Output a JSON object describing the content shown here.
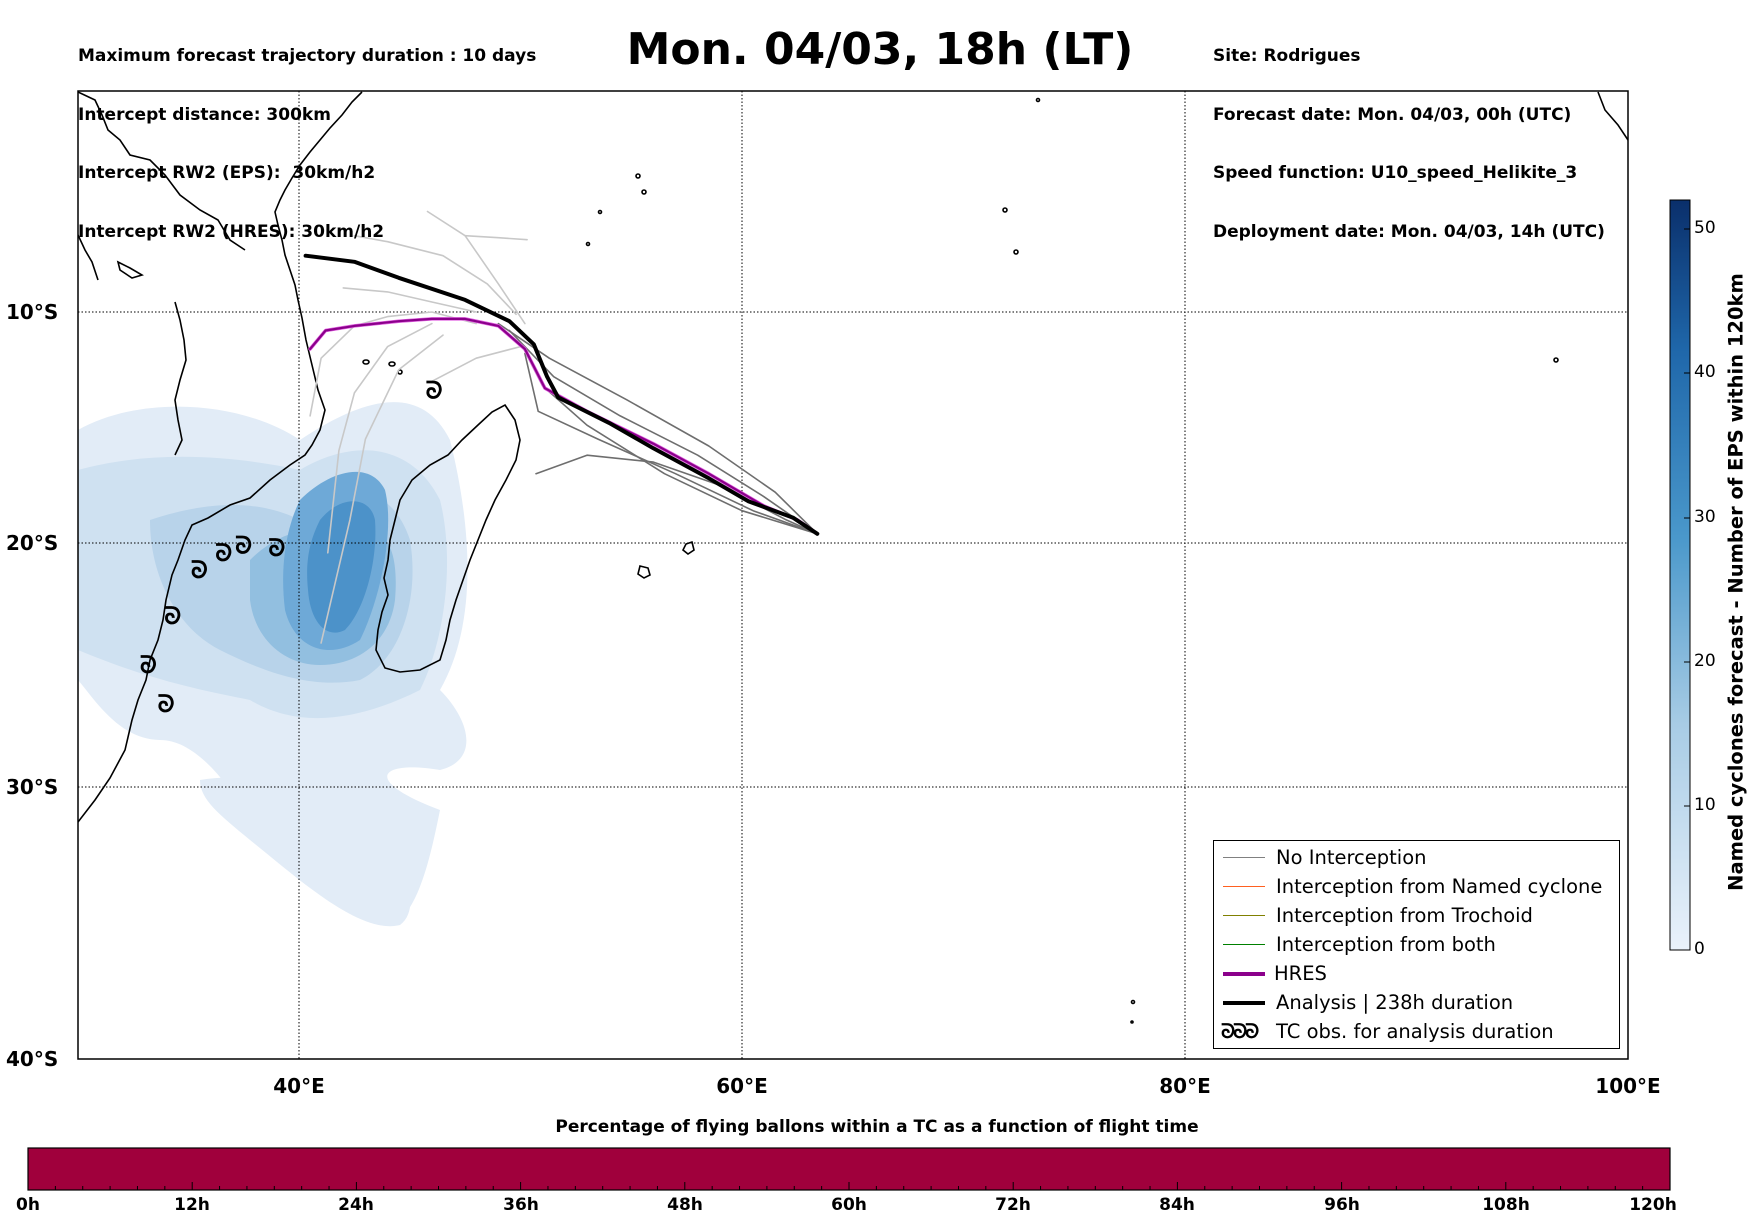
{
  "header": {
    "title": "Mon. 04/03, 18h (LT)",
    "left_info": [
      "Maximum forecast trajectory duration : 10 days",
      "Intercept distance: 300km",
      "Intercept RW2 (EPS):  30km/h2",
      "Intercept RW2 (HRES): 30km/h2"
    ],
    "right_info": [
      "Site: Rodrigues",
      "Forecast date: Mon. 04/03, 00h (UTC)",
      "Speed function: U10_speed_Helikite_3",
      "Deployment date: Mon. 04/03, 14h (UTC)"
    ]
  },
  "map": {
    "lon_range": [
      30,
      100
    ],
    "lat_range": [
      -40,
      1
    ],
    "lon_labels": [
      "40°E",
      "60°E",
      "80°E",
      "100°E"
    ],
    "lat_labels": [
      "10°S",
      "20°S",
      "30°S",
      "40°S"
    ]
  },
  "colorbar": {
    "label": "Named cyclones forecast - Number of EPS within 120km",
    "ticks": [
      "0",
      "10",
      "20",
      "30",
      "40",
      "50"
    ],
    "range": [
      0,
      52
    ]
  },
  "legend": [
    {
      "label": "No Interception",
      "color": "#808080",
      "kind": "line"
    },
    {
      "label": "Interception from Named cyclone",
      "color": "#ff6020",
      "kind": "line"
    },
    {
      "label": "Interception from Trochoid",
      "color": "#808000",
      "kind": "line"
    },
    {
      "label": "Interception from both",
      "color": "#008000",
      "kind": "line"
    },
    {
      "label": "HRES",
      "color": "#8b008b",
      "kind": "thick"
    },
    {
      "label": "Analysis | 238h duration",
      "color": "#000000",
      "kind": "thick"
    },
    {
      "label": "TC obs. for analysis duration",
      "color": "#000000",
      "kind": "symbol",
      "symbol": "ᘐᘐᘐ"
    }
  ],
  "bottom_bar": {
    "title": "Percentage of flying ballons within a TC as a function of flight time",
    "color": "#a0003c",
    "time_labels": [
      "0h",
      "12h",
      "24h",
      "36h",
      "48h",
      "60h",
      "72h",
      "84h",
      "96h",
      "108h",
      "120h"
    ]
  },
  "tracks": {
    "analysis": [
      [
        40.3,
        -7.2
      ],
      [
        42.5,
        -7.5
      ],
      [
        44.5,
        -8.3
      ],
      [
        47.5,
        -9.4
      ],
      [
        49.5,
        -10.4
      ],
      [
        50.6,
        -11.4
      ],
      [
        51.2,
        -12.8
      ],
      [
        51.7,
        -13.7
      ],
      [
        54,
        -14.8
      ],
      [
        56,
        -15.9
      ],
      [
        58.5,
        -17.2
      ],
      [
        60.3,
        -18.2
      ],
      [
        62.3,
        -18.9
      ],
      [
        63.4,
        -19.6
      ]
    ],
    "hres": [
      [
        40.5,
        -11.6
      ],
      [
        41.2,
        -10.8
      ],
      [
        42.5,
        -10.6
      ],
      [
        44.5,
        -10.4
      ],
      [
        46,
        -10.3
      ],
      [
        47.5,
        -10.3
      ],
      [
        49,
        -10.6
      ],
      [
        50.2,
        -11.6
      ],
      [
        51.1,
        -13.3
      ],
      [
        53,
        -14.3
      ],
      [
        56,
        -15.7
      ],
      [
        58.5,
        -17
      ],
      [
        61,
        -18.4
      ],
      [
        62.5,
        -19
      ],
      [
        63.4,
        -19.6
      ]
    ],
    "eps": [
      [
        [
          41.3,
          -20.4
        ],
        [
          41.8,
          -16
        ],
        [
          42.5,
          -13.5
        ],
        [
          44,
          -11.5
        ],
        [
          46,
          -10.5
        ]
      ],
      [
        [
          41.0,
          -24.1
        ],
        [
          42.3,
          -19
        ],
        [
          43,
          -15.5
        ],
        [
          44.5,
          -12.5
        ],
        [
          46.5,
          -11
        ]
      ],
      [
        [
          40.5,
          -14.5
        ],
        [
          41,
          -12
        ],
        [
          42.5,
          -10.6
        ],
        [
          44,
          -10.2
        ],
        [
          46,
          -10
        ],
        [
          48,
          -10.5
        ]
      ],
      [
        [
          42,
          -8.8
        ],
        [
          44,
          -9
        ],
        [
          46,
          -9.5
        ],
        [
          48,
          -10
        ]
      ],
      [
        [
          46,
          -13
        ],
        [
          48,
          -12
        ],
        [
          50,
          -11.5
        ]
      ],
      [
        [
          42.5,
          -6.2
        ],
        [
          44,
          -6.5
        ],
        [
          46.5,
          -7.2
        ],
        [
          48.5,
          -8.6
        ],
        [
          49.8,
          -10.1
        ]
      ],
      [
        [
          45.8,
          -5.0
        ],
        [
          47.5,
          -6.2
        ],
        [
          49,
          -8.6
        ],
        [
          50.2,
          -10.5
        ]
      ],
      [
        [
          47.5,
          -6.2
        ],
        [
          49,
          -6.3
        ],
        [
          50.3,
          -6.4
        ]
      ],
      [
        [
          50.7,
          -17
        ],
        [
          53,
          -16.2
        ],
        [
          56,
          -16.5
        ],
        [
          59,
          -17.5
        ],
        [
          62,
          -19
        ],
        [
          63.4,
          -19.6
        ]
      ],
      [
        [
          50.1,
          -11.5
        ],
        [
          51,
          -13.2
        ],
        [
          53,
          -14.9
        ],
        [
          56.5,
          -17
        ],
        [
          60,
          -18.6
        ],
        [
          63.4,
          -19.6
        ]
      ],
      [
        [
          49.5,
          -10.8
        ],
        [
          51.5,
          -12.8
        ],
        [
          54.5,
          -14.5
        ],
        [
          58,
          -16.2
        ],
        [
          61,
          -18
        ],
        [
          63.4,
          -19.6
        ]
      ],
      [
        [
          50.2,
          -11.8
        ],
        [
          50.8,
          -14.3
        ],
        [
          53.5,
          -15.5
        ],
        [
          57,
          -17
        ],
        [
          60.5,
          -18.6
        ],
        [
          63.4,
          -19.6
        ]
      ],
      [
        [
          49,
          -10.5
        ],
        [
          51.3,
          -12
        ],
        [
          54.8,
          -13.8
        ],
        [
          58.5,
          -15.8
        ],
        [
          61.5,
          -17.8
        ],
        [
          63.4,
          -19.6
        ]
      ]
    ],
    "tc_obs": [
      [
        46.1,
        -13.4
      ],
      [
        39.0,
        -20.2
      ],
      [
        37.5,
        -20.1
      ],
      [
        36.6,
        -20.4
      ],
      [
        35.5,
        -21.1
      ],
      [
        34.3,
        -23.0
      ],
      [
        33.2,
        -25.0
      ],
      [
        34.0,
        -26.6
      ]
    ]
  }
}
